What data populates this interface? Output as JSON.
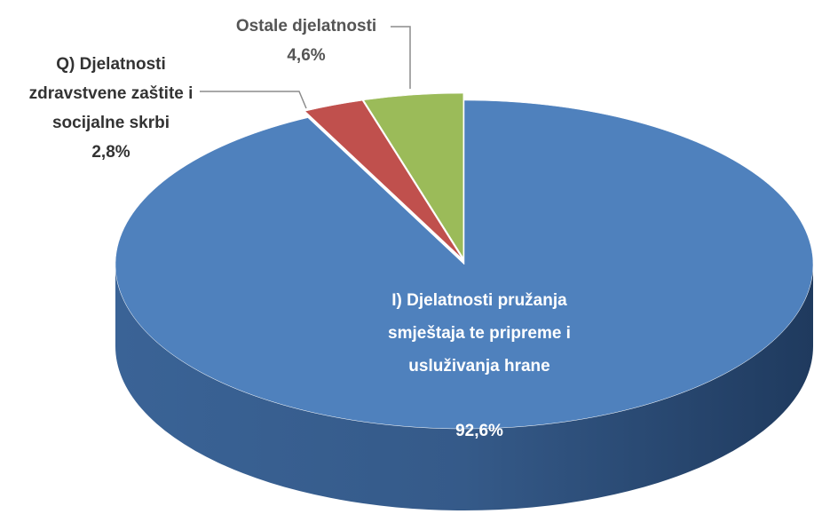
{
  "chart_data": {
    "type": "pie",
    "categories": [
      "I) Djelatnosti pružanja smještaja te pripreme i usluživanja hrane",
      "Q) Djelatnosti zdravstvene zaštite i socijalne skrbi",
      "Ostale djelatnosti"
    ],
    "values": [
      92.6,
      2.8,
      4.6
    ],
    "value_labels": [
      "92,6%",
      "2,8%",
      "4,6%"
    ],
    "colors": [
      "#4f81bd",
      "#c0504d",
      "#9bbb59"
    ]
  }
}
